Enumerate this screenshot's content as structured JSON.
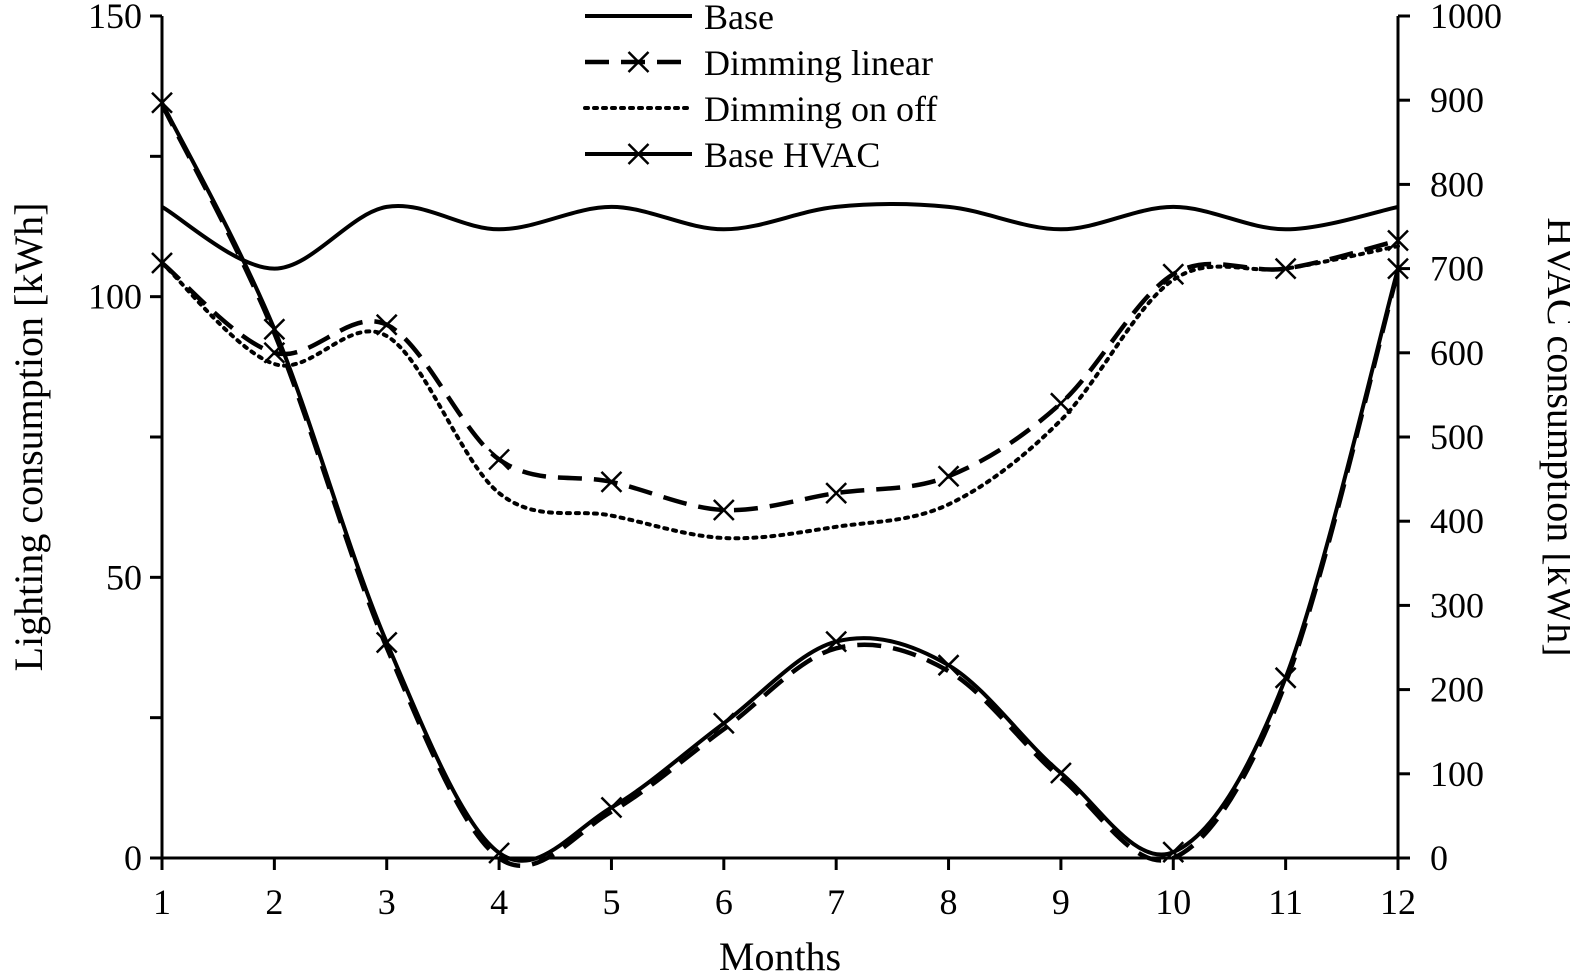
{
  "chart_data": {
    "type": "line",
    "title": "",
    "xlabel": "Months",
    "ylabel_left": "Lighting consumption [kWh]",
    "ylabel_right": "HVAC consumption [kWh]",
    "x": [
      1,
      2,
      3,
      4,
      5,
      6,
      7,
      8,
      9,
      10,
      11,
      12
    ],
    "x_tick_labels": [
      "1",
      "2",
      "3",
      "4",
      "5",
      "6",
      "7",
      "8",
      "9",
      "10",
      "11",
      "12"
    ],
    "xlim": [
      1,
      12
    ],
    "ylim_left": [
      0,
      150
    ],
    "ylim_right": [
      0,
      1000
    ],
    "y_ticks_left": [
      0,
      25,
      50,
      75,
      100,
      125,
      150
    ],
    "y_tick_labels_left": [
      "0",
      "",
      "50",
      "",
      "100",
      "",
      "150"
    ],
    "y_ticks_right": [
      0,
      100,
      200,
      300,
      400,
      500,
      600,
      700,
      800,
      900,
      1000
    ],
    "y_tick_labels_right": [
      "0",
      "100",
      "200",
      "300",
      "400",
      "500",
      "600",
      "700",
      "800",
      "900",
      "1000"
    ],
    "grid": false,
    "legend_position": "top-center",
    "series": [
      {
        "name": "Base",
        "axis": "left",
        "style": "solid",
        "marker": "none",
        "color": "#000000",
        "values": [
          116,
          105,
          116,
          112,
          116,
          112,
          116,
          116,
          112,
          116,
          112,
          116
        ]
      },
      {
        "name": "Dimming linear",
        "axis": "left",
        "style": "dashed",
        "marker": "x",
        "color": "#000000",
        "values": [
          106,
          90,
          95,
          71,
          67,
          62,
          65,
          68,
          81,
          104,
          105,
          110
        ]
      },
      {
        "name": "Dimming on off",
        "axis": "left",
        "style": "dotted",
        "marker": "none",
        "color": "#000000",
        "values": [
          106,
          88,
          93,
          65,
          61,
          57,
          59,
          63,
          78,
          103,
          105,
          109
        ]
      },
      {
        "name": "Base HVAC",
        "axis": "right",
        "style": "solid",
        "marker": "x",
        "color": "#000000",
        "values": [
          897,
          628,
          256,
          6,
          60,
          160,
          257,
          229,
          101,
          7,
          214,
          700
        ]
      },
      {
        "name": "",
        "axis": "right",
        "style": "dashed",
        "marker": "none",
        "color": "#000000",
        "values": [
          895,
          623,
          250,
          0,
          55,
          153,
          249,
          222,
          95,
          0,
          208,
          697
        ]
      }
    ]
  }
}
